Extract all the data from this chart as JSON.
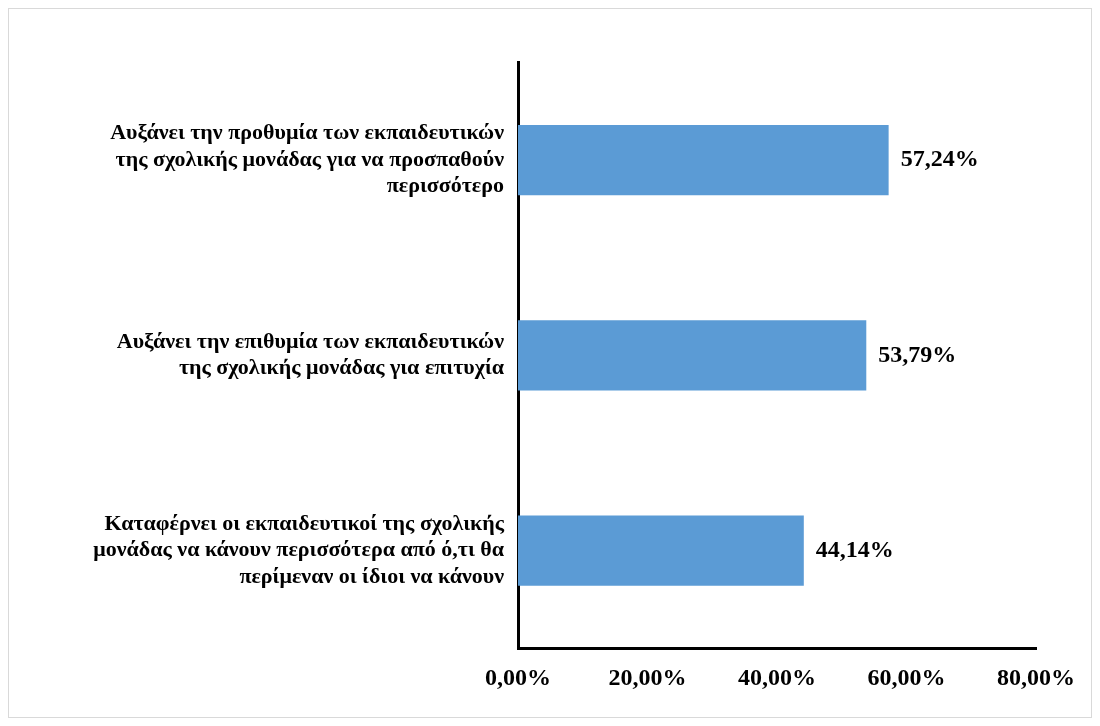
{
  "chart_data": {
    "type": "bar",
    "orientation": "horizontal",
    "categories": [
      "Αυξάνει την προθυμία των εκπαιδευτικών της σχολικής μονάδας για να προσπαθούν περισσότερο",
      "Αυξάνει την επιθυμία των εκπαιδευτικών της σχολικής μονάδας για επιτυχία",
      "Καταφέρνει οι εκπαιδευτικοί της σχολικής μονάδας να κάνουν περισσότερα από ό,τι θα περίμεναν οι ίδιοι να κάνουν"
    ],
    "values": [
      57.24,
      53.79,
      44.14
    ],
    "value_labels": [
      "57,24%",
      "53,79%",
      "44,14%"
    ],
    "color": "#5b9bd5",
    "xlim": [
      0,
      80
    ],
    "xticks": [
      {
        "value": 0,
        "label": "0,00%"
      },
      {
        "value": 20,
        "label": "20,00%"
      },
      {
        "value": 40,
        "label": "40,00%"
      },
      {
        "value": 60,
        "label": "60,00%"
      },
      {
        "value": 80,
        "label": "80,00%"
      }
    ],
    "grid": false,
    "legend": false
  }
}
